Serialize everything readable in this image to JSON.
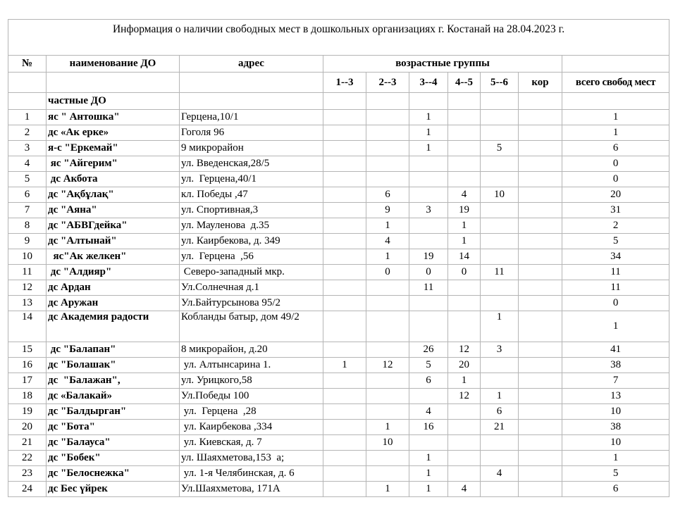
{
  "title": "Информация о наличии свободных мест в дошкольных организациях г. Костанай   на 28.04.2023  г.",
  "headers": {
    "no": "№",
    "name": "наименование ДО",
    "address": "адрес",
    "age_groups": "возрастные группы",
    "groups": [
      "1--3",
      "2--3",
      "3--4",
      "4--5",
      "5--6",
      "кор"
    ],
    "total": "всего свобод мест"
  },
  "section": "частные ДО",
  "rows": [
    [
      "1",
      "яс \" Антошка\"",
      "Герцена,10/1",
      "",
      "",
      "1",
      "",
      "",
      "",
      "1"
    ],
    [
      "2",
      "дс «Ак ерке»",
      "Гоголя 96",
      "",
      "",
      "1",
      "",
      "",
      "",
      "1"
    ],
    [
      "3",
      "я-с \"Еркемай\"",
      "9 микрорайон",
      "",
      "",
      "1",
      "",
      "5",
      "",
      "6"
    ],
    [
      "4",
      " яс \"Айгерим\"",
      "ул. Введенская,28/5",
      "",
      "",
      "",
      "",
      "",
      "",
      "0"
    ],
    [
      "5",
      " дс Акбота",
      "ул.  Герцена,40/1",
      "",
      "",
      "",
      "",
      "",
      "",
      "0"
    ],
    [
      "6",
      "дс \"Ақбұлақ\"",
      "кл. Победы ,47",
      "",
      "6",
      "",
      "4",
      "10",
      "",
      "20"
    ],
    [
      "7",
      "дс \"Аяна\"",
      "ул. Спортивная,3",
      "",
      "9",
      "3",
      "19",
      "",
      "",
      "31"
    ],
    [
      "8",
      "дс \"АБВГдейка\"",
      "ул. Мауленова  д.35",
      "",
      "1",
      "",
      "1",
      "",
      "",
      "2"
    ],
    [
      "9",
      "дс \"Алтынай\"",
      "ул. Каирбекова, д. 349",
      "",
      "4",
      "",
      "1",
      "",
      "",
      "5"
    ],
    [
      "10",
      "  яс\"Ак желкен\"",
      "ул.  Герцена  ,56",
      "",
      "1",
      "19",
      "14",
      "",
      "",
      "34"
    ],
    [
      "11",
      " дс \"Алдияр\"",
      " Северо-западный мкр.",
      "",
      "0",
      "0",
      "0",
      "11",
      "",
      "11"
    ],
    [
      "12",
      "дс Ардан",
      "Ул.Солнечная д.1",
      "",
      "",
      "11",
      "",
      "",
      "",
      "11"
    ],
    [
      "13",
      "дс Аружан",
      "Ул.Байтурсынова 95/2",
      "",
      "",
      "",
      "",
      "",
      "",
      "0"
    ],
    [
      "14",
      "дс Академия радости",
      "Кобланды батыр, дом 49/2",
      "",
      "",
      "",
      "",
      "1",
      "",
      "1"
    ],
    [
      "15",
      " дс \"Балапан\"",
      "8 микрорайон, д.20",
      "",
      "",
      "26",
      "12",
      "3",
      "",
      "41"
    ],
    [
      "16",
      "дс \"Болашак\"",
      " ул. Алтынсарина 1.",
      "1",
      "12",
      "5",
      "20",
      "",
      "",
      "38"
    ],
    [
      "17",
      "дс  \"Балажан\",",
      "ул. Урицкого,58",
      "",
      "",
      "6",
      "1",
      "",
      "",
      "7"
    ],
    [
      "18",
      "дс «Балакай»",
      "Ул.Победы 100",
      "",
      "",
      "",
      "12",
      "1",
      "",
      "13"
    ],
    [
      "19",
      "дс \"Балдырган\"",
      " ул.  Герцена  ,28",
      "",
      "",
      "4",
      "",
      "6",
      "",
      "10"
    ],
    [
      "20",
      "дс \"Бота\"",
      " ул. Каирбекова ,334",
      "",
      "1",
      "16",
      "",
      "21",
      "",
      "38"
    ],
    [
      "21",
      "дс \"Балауса\"",
      " ул. Киевская, д. 7",
      "",
      "10",
      "",
      "",
      "",
      "",
      "10"
    ],
    [
      "22",
      "дс \"Бобек\"",
      "ул. Шаяхметова,153  а;",
      "",
      "",
      "1",
      "",
      "",
      "",
      "1"
    ],
    [
      "23",
      "дс \"Белоснежка\"",
      " ул. 1-я Челябинская, д. 6",
      "",
      "",
      "1",
      "",
      "4",
      "",
      "5"
    ],
    [
      "24",
      "дс Бес үйрек",
      "Ул.Шаяхметова, 171А",
      "",
      "1",
      "1",
      "4",
      "",
      "",
      "6"
    ]
  ]
}
